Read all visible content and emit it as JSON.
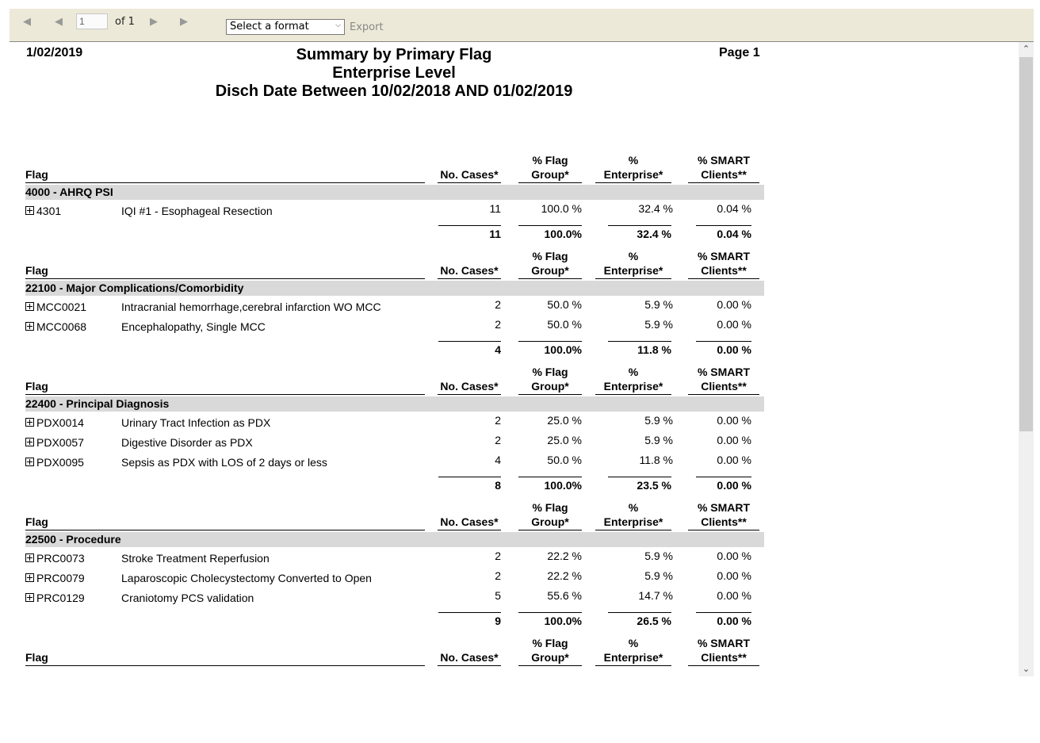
{
  "toolbar": {
    "page_value": "1",
    "of_label": "of 1",
    "format_placeholder": "Select a format",
    "export_label": "Export"
  },
  "report": {
    "date": "1/02/2019",
    "page": "Page 1",
    "title_line1": "Summary by Primary Flag",
    "title_line2": "Enterprise Level",
    "title_line3": "Disch Date Between 10/02/2018 AND 01/02/2019"
  },
  "columns": {
    "flag": "Flag",
    "cases": "No. Cases*",
    "flag_group_1": "% Flag",
    "flag_group_2": "Group*",
    "enterprise_1": "%",
    "enterprise_2": "Enterprise*",
    "smart_1": "% SMART",
    "smart_2": "Clients**"
  },
  "sections": [
    {
      "group": "4000 - AHRQ PSI",
      "rows": [
        {
          "code": "4301",
          "desc": "IQI #1 - Esophageal Resection",
          "cases": "11",
          "flag_group": "100.0 %",
          "enterprise": "32.4 %",
          "smart": "0.04 %"
        }
      ],
      "total": {
        "cases": "11",
        "flag_group": "100.0%",
        "enterprise": "32.4 %",
        "smart": "0.04 %"
      }
    },
    {
      "group": "22100 - Major Complications/Comorbidity",
      "rows": [
        {
          "code": "MCC0021",
          "desc": "Intracranial hemorrhage,cerebral infarction WO MCC",
          "cases": "2",
          "flag_group": "50.0 %",
          "enterprise": "5.9 %",
          "smart": "0.00 %"
        },
        {
          "code": "MCC0068",
          "desc": "Encephalopathy, Single MCC",
          "cases": "2",
          "flag_group": "50.0 %",
          "enterprise": "5.9 %",
          "smart": "0.00 %"
        }
      ],
      "total": {
        "cases": "4",
        "flag_group": "100.0%",
        "enterprise": "11.8 %",
        "smart": "0.00 %"
      }
    },
    {
      "group": "22400 - Principal Diagnosis",
      "rows": [
        {
          "code": "PDX0014",
          "desc": "Urinary Tract Infection as PDX",
          "cases": "2",
          "flag_group": "25.0 %",
          "enterprise": "5.9 %",
          "smart": "0.00 %"
        },
        {
          "code": "PDX0057",
          "desc": "Digestive Disorder as PDX",
          "cases": "2",
          "flag_group": "25.0 %",
          "enterprise": "5.9 %",
          "smart": "0.00 %"
        },
        {
          "code": "PDX0095",
          "desc": "Sepsis as PDX with LOS of 2 days or less",
          "cases": "4",
          "flag_group": "50.0 %",
          "enterprise": "11.8 %",
          "smart": "0.00 %"
        }
      ],
      "total": {
        "cases": "8",
        "flag_group": "100.0%",
        "enterprise": "23.5 %",
        "smart": "0.00 %"
      }
    },
    {
      "group": "22500 - Procedure",
      "rows": [
        {
          "code": "PRC0073",
          "desc": "Stroke Treatment Reperfusion",
          "cases": "2",
          "flag_group": "22.2 %",
          "enterprise": "5.9 %",
          "smart": "0.00 %"
        },
        {
          "code": "PRC0079",
          "desc": "Laparoscopic Cholecystectomy Converted to Open",
          "cases": "2",
          "flag_group": "22.2 %",
          "enterprise": "5.9 %",
          "smart": "0.00 %"
        },
        {
          "code": "PRC0129",
          "desc": "Craniotomy PCS validation",
          "cases": "5",
          "flag_group": "55.6 %",
          "enterprise": "14.7 %",
          "smart": "0.00 %"
        }
      ],
      "total": {
        "cases": "9",
        "flag_group": "100.0%",
        "enterprise": "26.5 %",
        "smart": "0.00 %"
      }
    }
  ]
}
